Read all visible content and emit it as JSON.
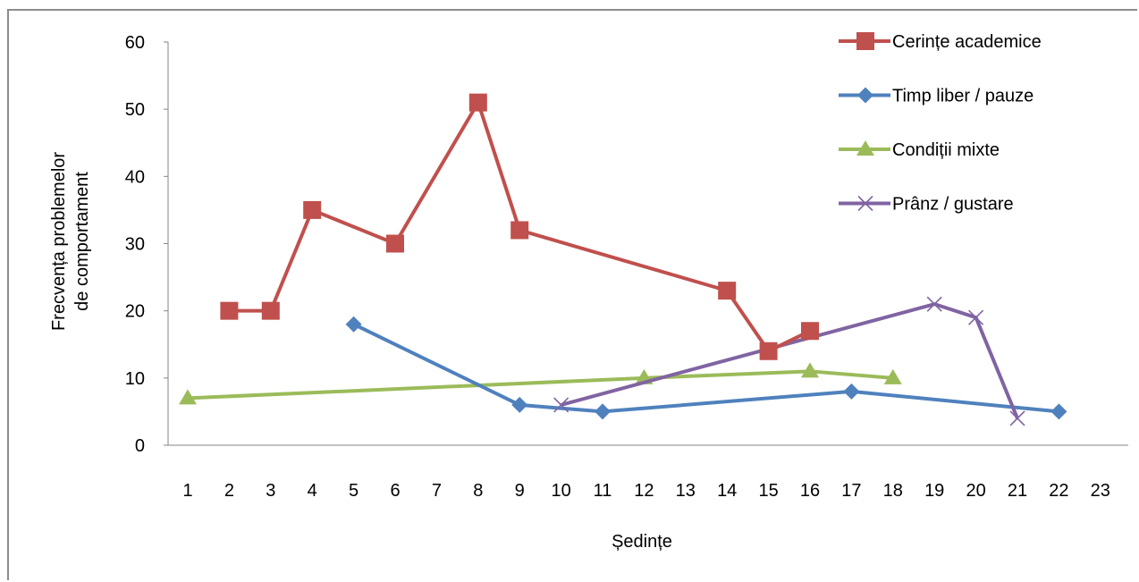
{
  "chart_data": {
    "type": "line",
    "title": "",
    "xlabel": "Ședințe",
    "ylabel_lines": [
      "Frecvența problemelor",
      "de comportament"
    ],
    "x_ticks": [
      "1",
      "2",
      "3",
      "4",
      "5",
      "6",
      "7",
      "8",
      "9",
      "10",
      "11",
      "12",
      "13",
      "14",
      "15",
      "16",
      "17",
      "18",
      "19",
      "20",
      "21",
      "22",
      "23"
    ],
    "y_ticks": [
      "0",
      "10",
      "20",
      "30",
      "40",
      "50",
      "60"
    ],
    "xlim": [
      1,
      23
    ],
    "ylim": [
      0,
      60
    ],
    "grid": false,
    "legend_position": "top-right",
    "series": [
      {
        "name": "Cerințe academice",
        "color": "#c0504d",
        "marker": "square",
        "x": [
          2,
          3,
          4,
          6,
          8,
          9,
          14,
          15,
          16
        ],
        "y": [
          20,
          20,
          35,
          30,
          51,
          32,
          23,
          14,
          17
        ]
      },
      {
        "name": "Timp liber / pauze",
        "color": "#4f81bd",
        "marker": "diamond",
        "x": [
          5,
          9,
          11,
          17,
          22
        ],
        "y": [
          18,
          6,
          5,
          8,
          5
        ]
      },
      {
        "name": "Condiții mixte",
        "color": "#9bbb59",
        "marker": "triangle",
        "x": [
          1,
          12,
          16,
          18
        ],
        "y": [
          7,
          10,
          11,
          10
        ]
      },
      {
        "name": "Prânz / gustare",
        "color": "#8064a2",
        "marker": "x",
        "x": [
          10,
          19,
          20,
          21
        ],
        "y": [
          6,
          21,
          19,
          4
        ]
      }
    ]
  }
}
